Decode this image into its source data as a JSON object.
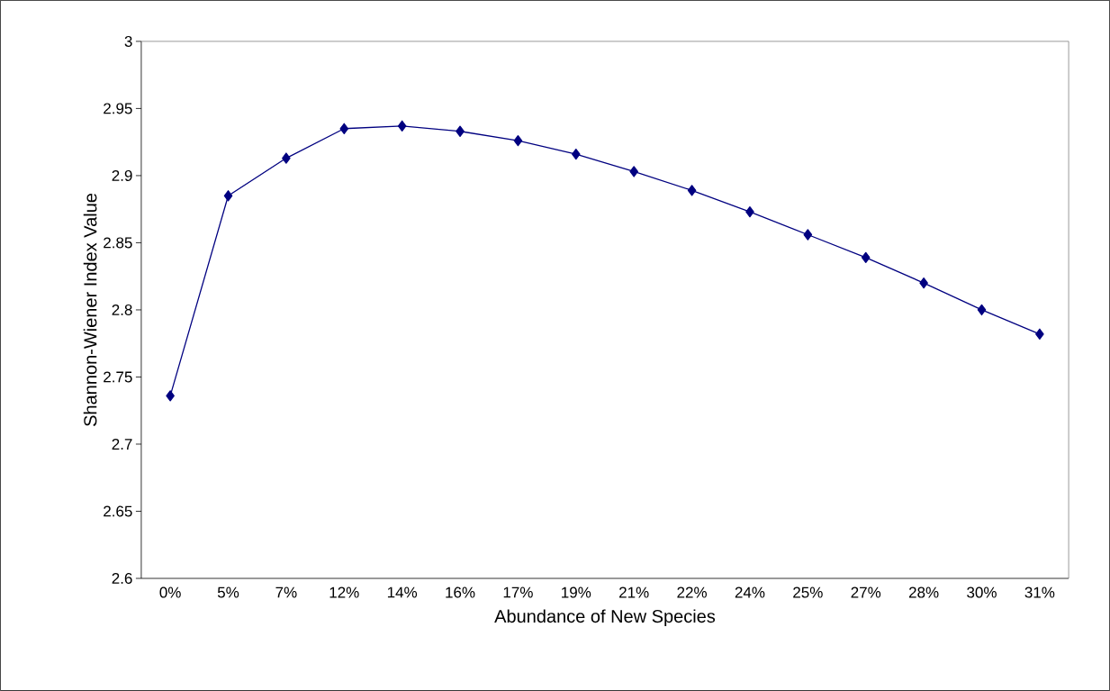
{
  "chart_data": {
    "type": "line",
    "xlabel": "Abundance of New Species",
    "ylabel": "Shannon-Wiener Index Value",
    "categories": [
      "0%",
      "5%",
      "7%",
      "12%",
      "14%",
      "16%",
      "17%",
      "19%",
      "21%",
      "22%",
      "24%",
      "25%",
      "27%",
      "28%",
      "30%",
      "31%"
    ],
    "series": [
      {
        "color": "#000080",
        "values": [
          2.736,
          2.885,
          2.913,
          2.935,
          2.937,
          2.933,
          2.926,
          2.916,
          2.903,
          2.889,
          2.873,
          2.856,
          2.839,
          2.82,
          2.8,
          2.782
        ]
      }
    ],
    "ylim": [
      2.6,
      3
    ],
    "yticks": [
      2.6,
      2.65,
      2.7,
      2.75,
      2.8,
      2.85,
      2.9,
      2.95,
      3
    ],
    "marker": "diamond",
    "line_style": "solid"
  }
}
